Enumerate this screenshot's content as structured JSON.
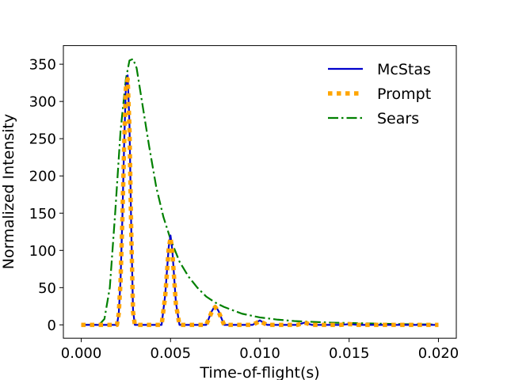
{
  "chart_data": {
    "type": "line",
    "xlabel": "Time-of-flight(s)",
    "ylabel": "Normalized Intensity",
    "xlim": [
      -0.001,
      0.021
    ],
    "ylim": [
      -17.9,
      375
    ],
    "xticks": [
      0.0,
      0.005,
      0.01,
      0.015,
      0.02
    ],
    "xtick_labels": [
      "0.000",
      "0.005",
      "0.010",
      "0.015",
      "0.020"
    ],
    "yticks": [
      0,
      50,
      100,
      150,
      200,
      250,
      300,
      350
    ],
    "ytick_labels": [
      "0",
      "50",
      "100",
      "150",
      "200",
      "250",
      "300",
      "350"
    ],
    "grid": false,
    "legend_position": "top-right",
    "series": [
      {
        "name": "McStas",
        "color": "#0000cc",
        "style": "solid",
        "x": [
          0.0,
          0.002,
          0.0021,
          0.0022,
          0.0023,
          0.0024,
          0.0025,
          0.0026,
          0.0027,
          0.0028,
          0.0029,
          0.003,
          0.0045,
          0.0047,
          0.0049,
          0.005,
          0.0051,
          0.0053,
          0.0055,
          0.007,
          0.0073,
          0.0075,
          0.0077,
          0.008,
          0.0096,
          0.01,
          0.0104,
          0.0121,
          0.0125,
          0.0129,
          0.0145,
          0.015,
          0.0155,
          0.02
        ],
        "y": [
          0,
          0,
          15,
          60,
          140,
          240,
          320,
          335,
          270,
          130,
          20,
          0,
          0,
          40,
          105,
          120,
          100,
          30,
          0,
          0,
          18,
          26,
          18,
          0,
          0,
          6,
          0,
          0,
          3,
          0,
          0,
          1,
          0,
          0
        ]
      },
      {
        "name": "Prompt",
        "color": "#ffa500",
        "style": "dotted",
        "x": [
          0.0,
          0.002,
          0.0021,
          0.0022,
          0.0023,
          0.0024,
          0.0025,
          0.0026,
          0.0027,
          0.0028,
          0.0029,
          0.003,
          0.0045,
          0.0047,
          0.0049,
          0.005,
          0.0051,
          0.0053,
          0.0055,
          0.007,
          0.0073,
          0.0075,
          0.0077,
          0.008,
          0.0096,
          0.01,
          0.0104,
          0.0121,
          0.0125,
          0.0129,
          0.0145,
          0.015,
          0.0155,
          0.02
        ],
        "y": [
          0,
          0,
          15,
          58,
          138,
          238,
          318,
          330,
          265,
          125,
          18,
          0,
          0,
          38,
          103,
          117,
          98,
          28,
          0,
          0,
          17,
          24,
          17,
          0,
          0,
          5,
          0,
          0,
          3,
          0,
          0,
          1,
          0,
          0
        ]
      },
      {
        "name": "Sears",
        "color": "#008000",
        "style": "dashdot",
        "x": [
          0.0,
          0.001,
          0.0013,
          0.0016,
          0.0019,
          0.0022,
          0.0025,
          0.0027,
          0.0029,
          0.0031,
          0.0034,
          0.0038,
          0.0042,
          0.0046,
          0.005,
          0.0055,
          0.006,
          0.0065,
          0.007,
          0.0075,
          0.008,
          0.009,
          0.01,
          0.011,
          0.012,
          0.014,
          0.016,
          0.018,
          0.02
        ],
        "y": [
          0,
          0,
          8,
          50,
          150,
          260,
          330,
          355,
          357,
          345,
          300,
          240,
          185,
          145,
          115,
          85,
          65,
          50,
          38,
          30,
          24,
          15,
          10,
          7,
          5,
          3,
          2,
          1,
          0.5
        ]
      }
    ]
  }
}
